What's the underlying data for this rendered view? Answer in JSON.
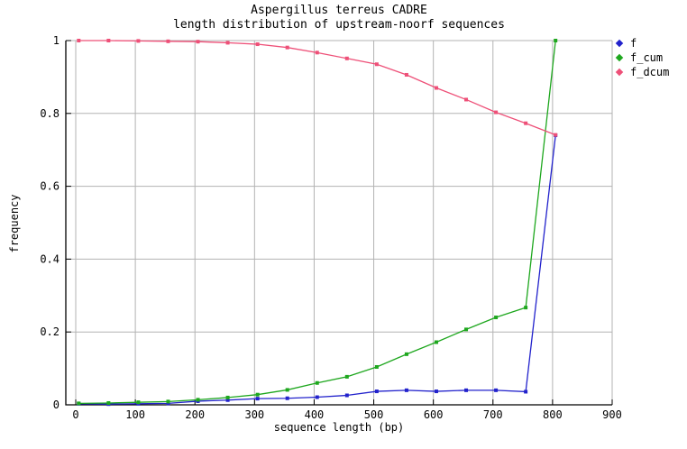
{
  "chart_data": {
    "type": "line",
    "title": "Aspergillus terreus CADRE",
    "subtitle": "length distribution of upstream-noorf sequences",
    "xlabel": "sequence length (bp)",
    "ylabel": "frequency",
    "xlim": [
      0,
      900
    ],
    "ylim": [
      0,
      1
    ],
    "xticks": [
      0,
      100,
      200,
      300,
      400,
      500,
      600,
      700,
      800,
      900
    ],
    "yticks": [
      0,
      0.2,
      0.4,
      0.6,
      0.8,
      1
    ],
    "ytick_labels": [
      "0",
      "0.2",
      "0.4",
      "0.6",
      "0.8",
      "1"
    ],
    "grid": true,
    "grid_color": "#b3b3b3",
    "border_color": "#000000",
    "legend_position": "outside-top-right",
    "marker": "square",
    "x": [
      5,
      55,
      105,
      155,
      205,
      255,
      305,
      355,
      405,
      455,
      505,
      555,
      605,
      655,
      705,
      755,
      805
    ],
    "series": [
      {
        "name": "f",
        "color": "#2222cc",
        "values": [
          0.003,
          0.002,
          0.003,
          0.004,
          0.01,
          0.013,
          0.017,
          0.018,
          0.021,
          0.026,
          0.037,
          0.04,
          0.037,
          0.04,
          0.04,
          0.036,
          0.74
        ]
      },
      {
        "name": "f_cum",
        "color": "#1ea71e",
        "values": [
          0.004,
          0.005,
          0.007,
          0.009,
          0.014,
          0.02,
          0.028,
          0.041,
          0.06,
          0.077,
          0.104,
          0.139,
          0.172,
          0.207,
          0.24,
          0.267,
          1.0
        ]
      },
      {
        "name": "f_dcum",
        "color": "#ee5078",
        "values": [
          1.0,
          1.0,
          0.999,
          0.998,
          0.997,
          0.994,
          0.99,
          0.981,
          0.967,
          0.951,
          0.935,
          0.906,
          0.87,
          0.838,
          0.803,
          0.773,
          0.741
        ]
      }
    ]
  }
}
